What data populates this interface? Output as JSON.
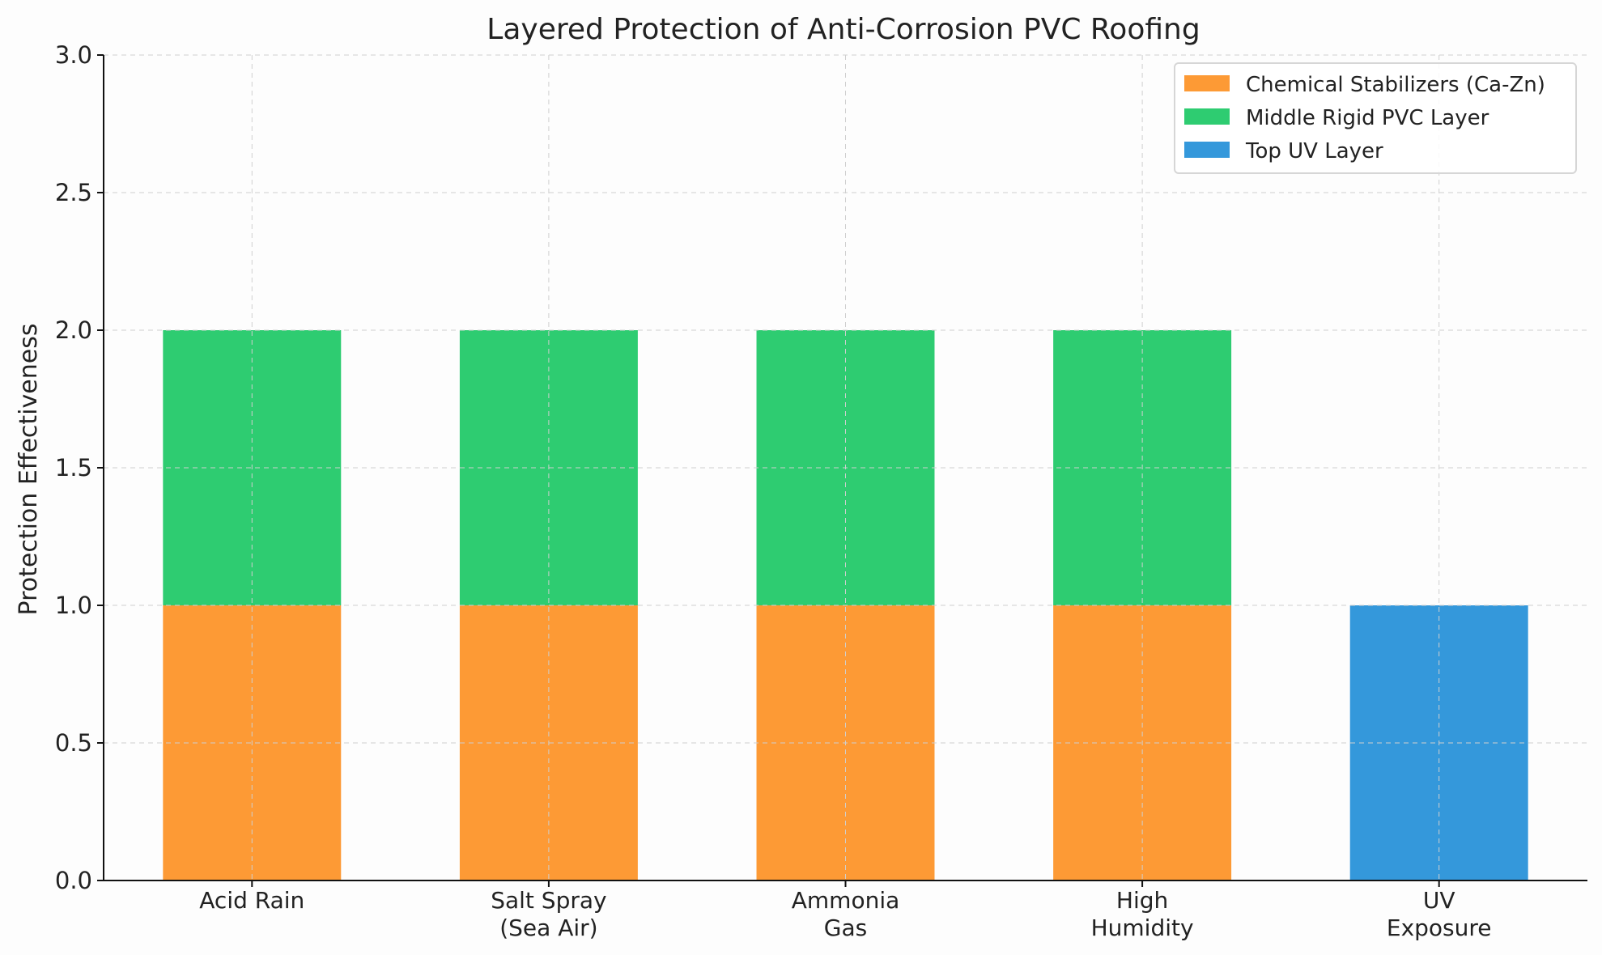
{
  "chart_data": {
    "type": "bar",
    "stacked": true,
    "title": "Layered Protection of Anti-Corrosion PVC Roofing",
    "xlabel": "",
    "ylabel": "Protection Effectiveness",
    "ylim": [
      0,
      3
    ],
    "yticks": [
      "0.0",
      "0.5",
      "1.0",
      "1.5",
      "2.0",
      "2.5",
      "3.0"
    ],
    "categories": [
      [
        "Acid Rain"
      ],
      [
        "Salt Spray",
        "(Sea Air)"
      ],
      [
        "Ammonia",
        "Gas"
      ],
      [
        "High",
        "Humidity"
      ],
      [
        "UV",
        "Exposure"
      ]
    ],
    "series": [
      {
        "name": "Chemical Stabilizers (Ca-Zn)",
        "color": "#fd9a35",
        "values": [
          1,
          1,
          1,
          1,
          0
        ]
      },
      {
        "name": "Middle Rigid PVC Layer",
        "color": "#2ecc71",
        "values": [
          1,
          1,
          1,
          1,
          0
        ]
      },
      {
        "name": "Top UV Layer",
        "color": "#3498db",
        "values": [
          0,
          0,
          0,
          0,
          1
        ]
      }
    ],
    "grid": true,
    "legend_position": "top-right"
  }
}
